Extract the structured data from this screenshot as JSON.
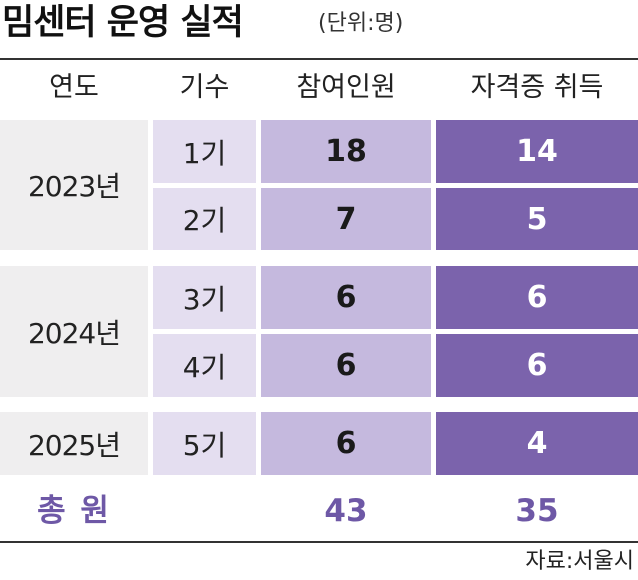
{
  "title": "밈센터 운영 실적",
  "unit": "(단위:명)",
  "chart_data": {
    "type": "table",
    "columns": [
      "연도",
      "기수",
      "참여인원",
      "자격증 취득"
    ],
    "groups": [
      {
        "year": "2023년",
        "rows": [
          {
            "cohort": "1기",
            "participants": "18",
            "certified": "14"
          },
          {
            "cohort": "2기",
            "participants": "7",
            "certified": "5"
          }
        ]
      },
      {
        "year": "2024년",
        "rows": [
          {
            "cohort": "3기",
            "participants": "6",
            "certified": "6"
          },
          {
            "cohort": "4기",
            "participants": "6",
            "certified": "6"
          }
        ]
      },
      {
        "year": "2025년",
        "rows": [
          {
            "cohort": "5기",
            "participants": "6",
            "certified": "4"
          }
        ]
      }
    ],
    "total": {
      "label": "총 원",
      "participants": "43",
      "certified": "35"
    }
  },
  "source": "자료:서울시",
  "colors": {
    "year_bg": "#efeeef",
    "cohort_bg": "#e4def0",
    "participants_bg": "#c5b9de",
    "certified_bg": "#7b63ac",
    "total_text": "#6e58a6"
  }
}
